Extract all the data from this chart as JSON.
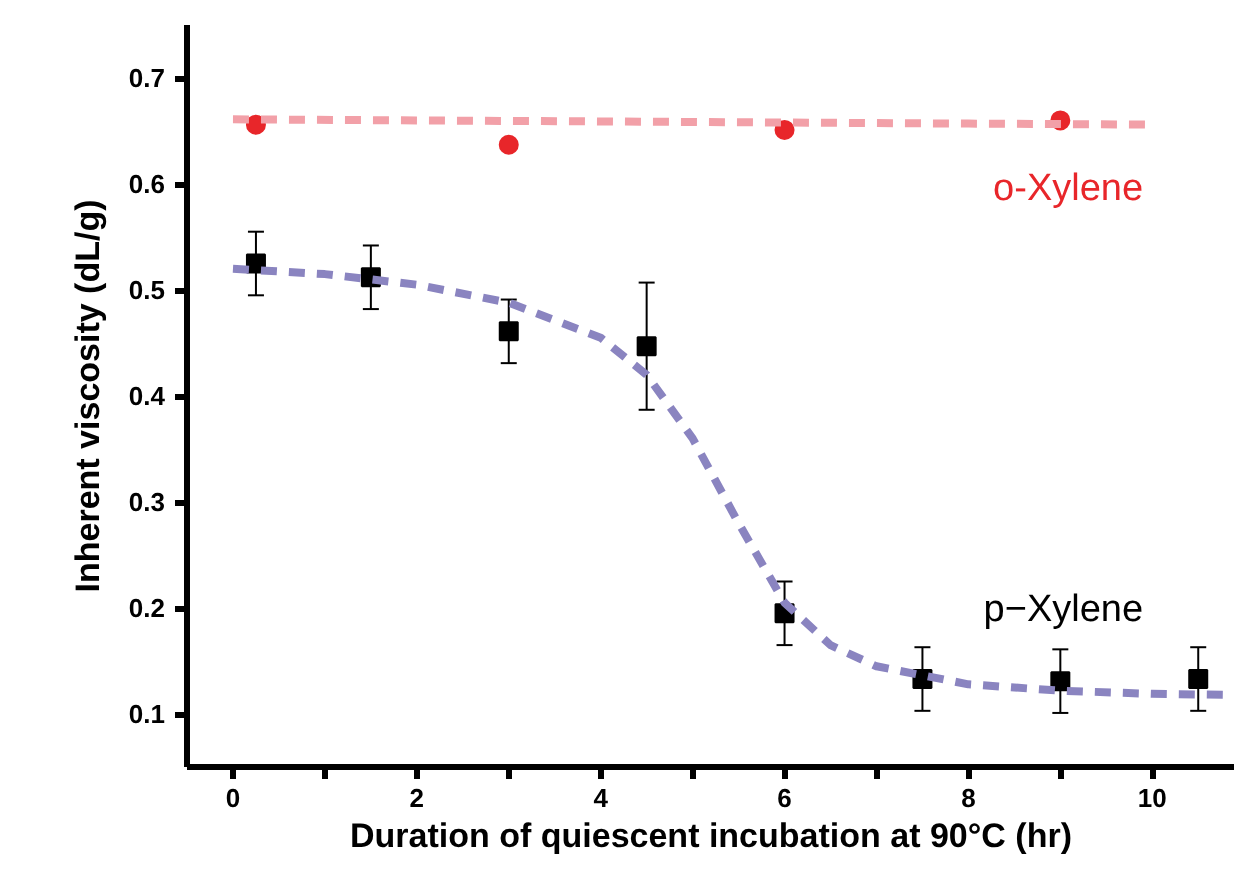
{
  "chart_data": {
    "type": "scatter",
    "xlabel": "Duration of quiescent incubation at 90°C (hr)",
    "ylabel": "Inherent viscosity (dL/g)",
    "xlim": [
      -0.5,
      10.9
    ],
    "ylim": [
      0.05,
      0.75
    ],
    "xticks": [
      0,
      {
        "value": 1,
        "label": null
      },
      2,
      {
        "value": 3,
        "label": null
      },
      4,
      {
        "value": 5,
        "label": null
      },
      6,
      {
        "value": 7,
        "label": null
      },
      8,
      {
        "value": 9,
        "label": null
      },
      10
    ],
    "yticks": [
      0.1,
      0.2,
      0.3,
      0.4,
      0.5,
      0.6,
      0.7
    ],
    "grid": false,
    "series": [
      {
        "name": "o-Xylene",
        "color": "#e8262a",
        "marker": "circle",
        "x": [
          0.25,
          3,
          6,
          9
        ],
        "values": [
          0.656,
          0.637,
          0.651,
          0.66
        ]
      },
      {
        "name": "p−Xylene",
        "color": "#000000",
        "marker": "square",
        "x": [
          0.25,
          1.5,
          3,
          4.5,
          6,
          7.5,
          9,
          10.5
        ],
        "values": [
          0.525,
          0.512,
          0.461,
          0.447,
          0.195,
          0.133,
          0.131,
          0.133
        ],
        "errors": [
          0.03,
          0.03,
          0.03,
          0.06,
          0.03,
          0.03,
          0.03,
          0.03
        ]
      },
      {
        "type": "line",
        "color": "#f2a0a8",
        "line_style": "dashed",
        "x": [
          0,
          2,
          4,
          6,
          8,
          10
        ],
        "values": [
          0.661,
          0.66,
          0.659,
          0.658,
          0.657,
          0.656
        ]
      },
      {
        "type": "line",
        "color": "#8a84c0",
        "line_style": "dashed",
        "x": [
          0,
          1,
          2,
          3,
          4,
          4.5,
          5,
          5.5,
          6,
          6.5,
          7,
          8,
          9,
          10,
          10.9
        ],
        "values": [
          0.52,
          0.515,
          0.505,
          0.488,
          0.455,
          0.42,
          0.36,
          0.28,
          0.205,
          0.165,
          0.145,
          0.128,
          0.122,
          0.119,
          0.118
        ]
      }
    ]
  }
}
